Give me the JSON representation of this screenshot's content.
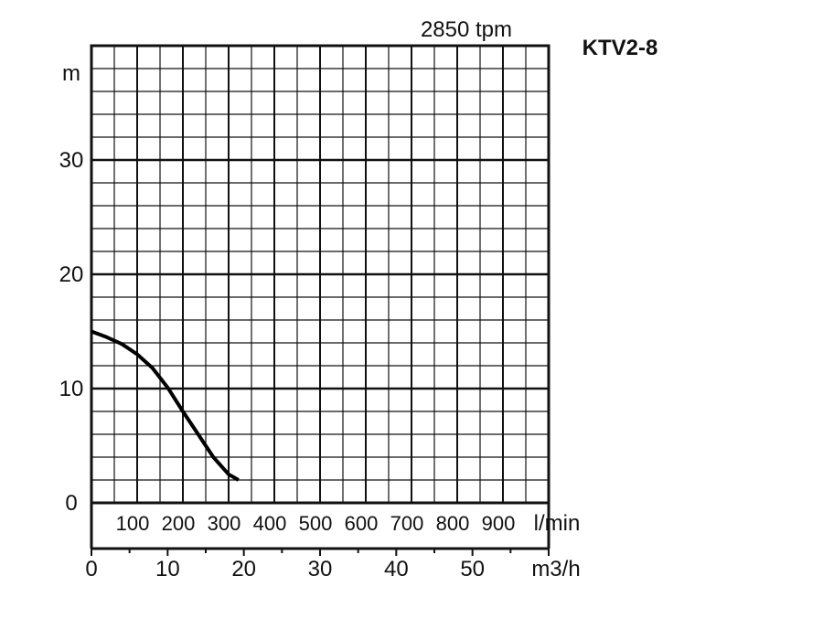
{
  "chart_data": {
    "type": "line",
    "model": "KTV2-8",
    "speed": "2850 tpm",
    "ylabel": "m",
    "ylim": [
      0,
      40
    ],
    "y_ticks": [
      0,
      10,
      20,
      30
    ],
    "grid": true,
    "flow_lmin": {
      "unit": "l/min",
      "ticks": [
        100,
        200,
        300,
        400,
        500,
        600,
        700,
        800,
        900
      ]
    },
    "flow_m3h": {
      "unit": "m3/h",
      "xlim": [
        0,
        60
      ],
      "ticks": [
        0,
        10,
        20,
        30,
        40,
        50
      ]
    },
    "series": [
      {
        "x_unit": "m3/h",
        "x": [
          0,
          2,
          4,
          6,
          8,
          10,
          12,
          14,
          16,
          18,
          19.3
        ],
        "y": [
          15,
          14.5,
          13.9,
          13.0,
          11.8,
          10.1,
          8.0,
          6.0,
          4.0,
          2.5,
          2.0
        ]
      }
    ]
  }
}
